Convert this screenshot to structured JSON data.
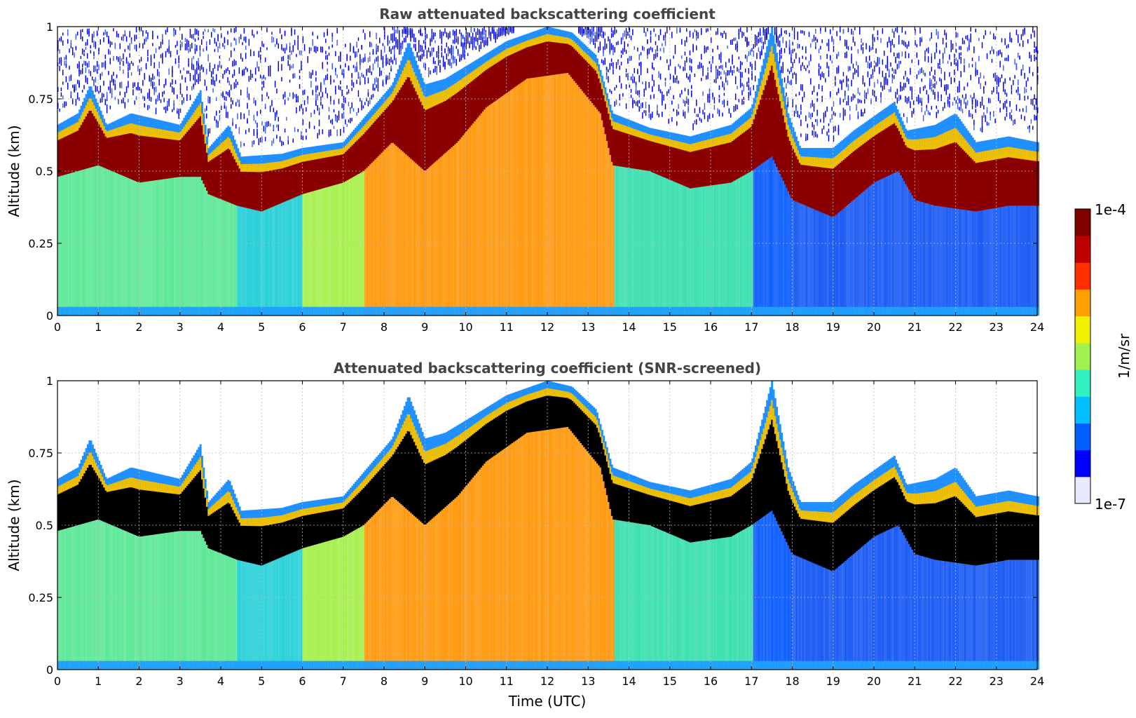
{
  "chart_data": [
    {
      "type": "heatmap",
      "title": "Raw attenuated backscattering coefficient",
      "xlabel": "",
      "ylabel": "Altitude (km)",
      "xlim": [
        0,
        24
      ],
      "ylim": [
        0,
        1
      ],
      "x_ticks": [
        "0",
        "1",
        "2",
        "3",
        "4",
        "5",
        "6",
        "7",
        "8",
        "9",
        "10",
        "11",
        "12",
        "13",
        "14",
        "15",
        "16",
        "17",
        "18",
        "19",
        "20",
        "21",
        "22",
        "23",
        "24"
      ],
      "y_ticks": [
        "0",
        "0.25",
        "0.5",
        "0.75",
        "1"
      ],
      "grid": true,
      "screened": false,
      "layer_top_km": [
        [
          0,
          0.66
        ],
        [
          0.5,
          0.7
        ],
        [
          0.8,
          0.8
        ],
        [
          1.2,
          0.66
        ],
        [
          1.8,
          0.7
        ],
        [
          2.4,
          0.68
        ],
        [
          3.0,
          0.66
        ],
        [
          3.5,
          0.78
        ],
        [
          3.7,
          0.58
        ],
        [
          4.2,
          0.66
        ],
        [
          4.5,
          0.55
        ],
        [
          5.5,
          0.56
        ],
        [
          6.0,
          0.58
        ],
        [
          7.0,
          0.6
        ],
        [
          7.6,
          0.7
        ],
        [
          8.2,
          0.8
        ],
        [
          8.6,
          0.95
        ],
        [
          9.0,
          0.8
        ],
        [
          9.5,
          0.82
        ],
        [
          10.2,
          0.88
        ],
        [
          11.0,
          0.95
        ],
        [
          12.0,
          1.0
        ],
        [
          12.6,
          0.98
        ],
        [
          13.2,
          0.9
        ],
        [
          13.6,
          0.7
        ],
        [
          14.5,
          0.65
        ],
        [
          15.5,
          0.62
        ],
        [
          16.5,
          0.66
        ],
        [
          17.0,
          0.72
        ],
        [
          17.5,
          1.0
        ],
        [
          17.9,
          0.7
        ],
        [
          18.2,
          0.58
        ],
        [
          19.0,
          0.58
        ],
        [
          19.5,
          0.64
        ],
        [
          20.5,
          0.74
        ],
        [
          20.8,
          0.64
        ],
        [
          21.5,
          0.66
        ],
        [
          22.0,
          0.7
        ],
        [
          22.5,
          0.6
        ],
        [
          23.3,
          0.62
        ],
        [
          24,
          0.6
        ]
      ],
      "layer_bottom_km": [
        [
          0,
          0.48
        ],
        [
          1.0,
          0.52
        ],
        [
          2.0,
          0.46
        ],
        [
          3.0,
          0.48
        ],
        [
          3.5,
          0.48
        ],
        [
          3.7,
          0.42
        ],
        [
          4.4,
          0.38
        ],
        [
          5.0,
          0.36
        ],
        [
          6.0,
          0.42
        ],
        [
          7.0,
          0.46
        ],
        [
          7.5,
          0.5
        ],
        [
          8.2,
          0.6
        ],
        [
          9.0,
          0.5
        ],
        [
          9.8,
          0.6
        ],
        [
          10.5,
          0.72
        ],
        [
          11.5,
          0.82
        ],
        [
          12.5,
          0.84
        ],
        [
          13.3,
          0.7
        ],
        [
          13.6,
          0.52
        ],
        [
          14.5,
          0.5
        ],
        [
          15.5,
          0.44
        ],
        [
          16.5,
          0.46
        ],
        [
          17.0,
          0.5
        ],
        [
          17.5,
          0.55
        ],
        [
          18.0,
          0.4
        ],
        [
          19.0,
          0.34
        ],
        [
          20.0,
          0.46
        ],
        [
          20.6,
          0.5
        ],
        [
          21.0,
          0.4
        ],
        [
          21.5,
          0.38
        ],
        [
          22.5,
          0.36
        ],
        [
          23.3,
          0.38
        ],
        [
          24,
          0.38
        ]
      ],
      "background_below_layer": [
        {
          "range": [
            0,
            4.4
          ],
          "color": "#5fe898"
        },
        {
          "range": [
            4.4,
            6.0
          ],
          "color": "#2ad0d8"
        },
        {
          "range": [
            6.0,
            7.5
          ],
          "color": "#a8f050"
        },
        {
          "range": [
            7.5,
            13.6
          ],
          "color": "#ff9a10"
        },
        {
          "range": [
            13.6,
            17.0
          ],
          "color": "#3ee0b0"
        },
        {
          "range": [
            17.0,
            18.0
          ],
          "color": "#1060ff"
        },
        {
          "range": [
            18.0,
            24.0
          ],
          "color": "#1c5cf4"
        }
      ]
    },
    {
      "type": "heatmap",
      "title": "Attenuated backscattering coefficient (SNR-screened)",
      "xlabel": "Time (UTC)",
      "ylabel": "Altitude (km)",
      "xlim": [
        0,
        24
      ],
      "ylim": [
        0,
        1
      ],
      "x_ticks": [
        "0",
        "1",
        "2",
        "3",
        "4",
        "5",
        "6",
        "7",
        "8",
        "9",
        "10",
        "11",
        "12",
        "13",
        "14",
        "15",
        "16",
        "17",
        "18",
        "19",
        "20",
        "21",
        "22",
        "23",
        "24"
      ],
      "y_ticks": [
        "0",
        "0.25",
        "0.5",
        "0.75",
        "1"
      ],
      "grid": true,
      "screened": true
    }
  ],
  "colorbar": {
    "max_label": "1e-4",
    "min_label": "1e-7",
    "unit_label": "1/m/sr",
    "colors": [
      "#e8e8ff",
      "#0000ff",
      "#0060ff",
      "#00c0ff",
      "#30f0c0",
      "#a0f050",
      "#f0f000",
      "#ffa000",
      "#ff3000",
      "#c00000",
      "#800000"
    ]
  }
}
